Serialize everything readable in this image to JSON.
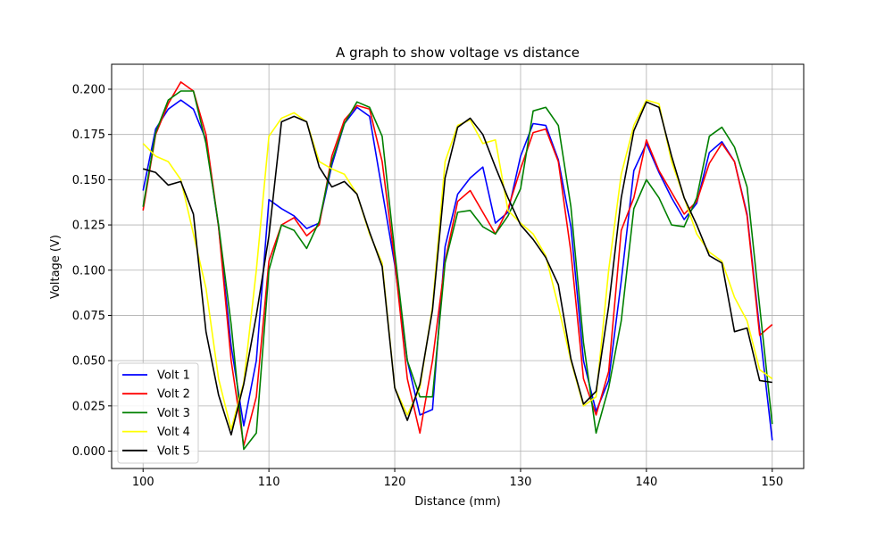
{
  "chart_data": {
    "type": "line",
    "title": "A graph to show voltage vs distance",
    "xlabel": "Distance (mm)",
    "ylabel": "Voltage (V)",
    "xlim": [
      97.5,
      152.5
    ],
    "ylim": [
      -0.0096,
      0.2138
    ],
    "xticks": [
      100,
      110,
      120,
      130,
      140,
      150
    ],
    "xtick_labels": [
      "100",
      "110",
      "120",
      "130",
      "140",
      "150"
    ],
    "yticks": [
      0.0,
      0.025,
      0.05,
      0.075,
      0.1,
      0.125,
      0.15,
      0.175,
      0.2
    ],
    "ytick_labels": [
      "0.000",
      "0.025",
      "0.050",
      "0.075",
      "0.100",
      "0.125",
      "0.150",
      "0.175",
      "0.200"
    ],
    "grid": true,
    "legend": "lower-left",
    "x": [
      100,
      101,
      102,
      103,
      104,
      105,
      106,
      107,
      108,
      109,
      110,
      111,
      112,
      113,
      114,
      115,
      116,
      117,
      118,
      119,
      120,
      121,
      122,
      123,
      124,
      125,
      126,
      127,
      128,
      129,
      130,
      131,
      132,
      133,
      134,
      135,
      136,
      137,
      138,
      139,
      140,
      141,
      142,
      143,
      144,
      145,
      146,
      147,
      148,
      149,
      150
    ],
    "series": [
      {
        "name": "Volt 1",
        "color": "#0000ff",
        "values": [
          0.144,
          0.178,
          0.189,
          0.194,
          0.189,
          0.172,
          0.124,
          0.058,
          0.014,
          0.05,
          0.139,
          0.134,
          0.13,
          0.123,
          0.126,
          0.158,
          0.181,
          0.19,
          0.185,
          0.144,
          0.103,
          0.05,
          0.02,
          0.023,
          0.113,
          0.142,
          0.151,
          0.157,
          0.126,
          0.132,
          0.163,
          0.181,
          0.18,
          0.161,
          0.124,
          0.05,
          0.022,
          0.039,
          0.094,
          0.155,
          0.17,
          0.154,
          0.14,
          0.128,
          0.137,
          0.165,
          0.171,
          0.16,
          0.131,
          0.067,
          0.006
        ]
      },
      {
        "name": "Volt 2",
        "color": "#ff0000",
        "values": [
          0.133,
          0.175,
          0.192,
          0.204,
          0.199,
          0.175,
          0.124,
          0.05,
          0.003,
          0.03,
          0.105,
          0.125,
          0.129,
          0.119,
          0.125,
          0.163,
          0.183,
          0.191,
          0.189,
          0.16,
          0.105,
          0.04,
          0.01,
          0.05,
          0.105,
          0.138,
          0.144,
          0.132,
          0.12,
          0.134,
          0.156,
          0.176,
          0.178,
          0.16,
          0.11,
          0.04,
          0.02,
          0.044,
          0.122,
          0.14,
          0.172,
          0.155,
          0.143,
          0.131,
          0.138,
          0.159,
          0.17,
          0.16,
          0.13,
          0.064,
          0.07
        ]
      },
      {
        "name": "Volt 3",
        "color": "#008000",
        "values": [
          0.135,
          0.176,
          0.194,
          0.199,
          0.199,
          0.17,
          0.125,
          0.07,
          0.001,
          0.01,
          0.1,
          0.125,
          0.122,
          0.112,
          0.127,
          0.16,
          0.181,
          0.193,
          0.19,
          0.174,
          0.11,
          0.05,
          0.03,
          0.03,
          0.104,
          0.132,
          0.133,
          0.124,
          0.12,
          0.13,
          0.145,
          0.188,
          0.19,
          0.18,
          0.135,
          0.06,
          0.01,
          0.035,
          0.072,
          0.134,
          0.15,
          0.14,
          0.125,
          0.124,
          0.14,
          0.174,
          0.179,
          0.168,
          0.146,
          0.08,
          0.015
        ]
      },
      {
        "name": "Volt 4",
        "color": "#ffff00",
        "values": [
          0.17,
          0.163,
          0.16,
          0.15,
          0.12,
          0.09,
          0.04,
          0.012,
          0.038,
          0.1,
          0.174,
          0.184,
          0.187,
          0.182,
          0.16,
          0.156,
          0.153,
          0.142,
          0.12,
          0.104,
          0.035,
          0.02,
          0.035,
          0.08,
          0.16,
          0.18,
          0.183,
          0.17,
          0.172,
          0.133,
          0.126,
          0.12,
          0.108,
          0.08,
          0.05,
          0.025,
          0.03,
          0.1,
          0.153,
          0.18,
          0.194,
          0.192,
          0.16,
          0.14,
          0.12,
          0.11,
          0.105,
          0.085,
          0.072,
          0.045,
          0.04
        ]
      },
      {
        "name": "Volt 5",
        "color": "#000000",
        "values": [
          0.156,
          0.154,
          0.147,
          0.149,
          0.131,
          0.066,
          0.031,
          0.009,
          0.037,
          0.075,
          0.119,
          0.182,
          0.185,
          0.182,
          0.157,
          0.146,
          0.149,
          0.142,
          0.121,
          0.102,
          0.035,
          0.017,
          0.037,
          0.078,
          0.151,
          0.179,
          0.184,
          0.175,
          0.157,
          0.14,
          0.125,
          0.117,
          0.107,
          0.092,
          0.051,
          0.026,
          0.033,
          0.08,
          0.14,
          0.177,
          0.193,
          0.19,
          0.163,
          0.14,
          0.125,
          0.108,
          0.104,
          0.066,
          0.068,
          0.039,
          0.038
        ]
      }
    ]
  }
}
